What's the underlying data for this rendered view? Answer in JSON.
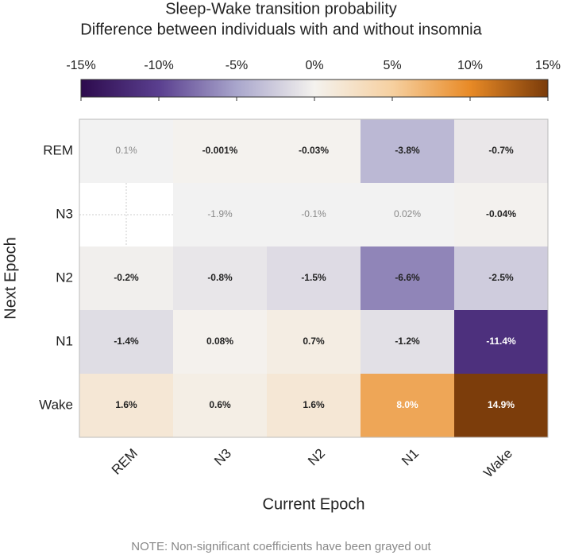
{
  "chart_data": {
    "type": "heatmap",
    "title": "Sleep-Wake transition probability",
    "subtitle": "Difference between individuals with and without insomnia",
    "x_label": "Current Epoch",
    "y_label": "Next Epoch",
    "note": "NOTE: Non-significant coefficients have been grayed out",
    "x_categories": [
      "REM",
      "N3",
      "N2",
      "N1",
      "Wake"
    ],
    "y_categories": [
      "REM",
      "N3",
      "N2",
      "N1",
      "Wake"
    ],
    "values": [
      [
        0.1,
        -0.001,
        -0.03,
        -3.8,
        -0.7
      ],
      [
        null,
        -1.9,
        -0.1,
        0.02,
        -0.04
      ],
      [
        -0.2,
        -0.8,
        -1.5,
        -6.6,
        -2.5
      ],
      [
        -1.4,
        0.08,
        0.7,
        -1.2,
        -11.4
      ],
      [
        1.6,
        0.6,
        1.6,
        8.0,
        14.9
      ]
    ],
    "value_labels": [
      [
        "0.1%",
        "-0.001%",
        "-0.03%",
        "-3.8%",
        "-0.7%"
      ],
      [
        null,
        "-1.9%",
        "-0.1%",
        "0.02%",
        "-0.04%"
      ],
      [
        "-0.2%",
        "-0.8%",
        "-1.5%",
        "-6.6%",
        "-2.5%"
      ],
      [
        "-1.4%",
        "0.08%",
        "0.7%",
        "-1.2%",
        "-11.4%"
      ],
      [
        "1.6%",
        "0.6%",
        "1.6%",
        "8.0%",
        "14.9%"
      ]
    ],
    "significant": [
      [
        false,
        true,
        true,
        true,
        true
      ],
      [
        null,
        false,
        false,
        false,
        true
      ],
      [
        true,
        true,
        true,
        true,
        true
      ],
      [
        true,
        true,
        true,
        true,
        true
      ],
      [
        true,
        true,
        true,
        true,
        true
      ]
    ],
    "colorbar_lim": [
      -15,
      15
    ],
    "colorbar_ticks": [
      {
        "value": -15,
        "label": "-15%"
      },
      {
        "value": -10,
        "label": "-10%"
      },
      {
        "value": -5,
        "label": "-5%"
      },
      {
        "value": 0,
        "label": "0%"
      },
      {
        "value": 5,
        "label": "5%"
      },
      {
        "value": 10,
        "label": "10%"
      },
      {
        "value": 15,
        "label": "15%"
      }
    ],
    "colormap": [
      "#2d0b4d",
      "#5a3f8f",
      "#a9a6cc",
      "#f4f2ee",
      "#f6d0a0",
      "#e88a26",
      "#7a3b0a"
    ],
    "nonsignificant_color": "#f2f2f2"
  }
}
